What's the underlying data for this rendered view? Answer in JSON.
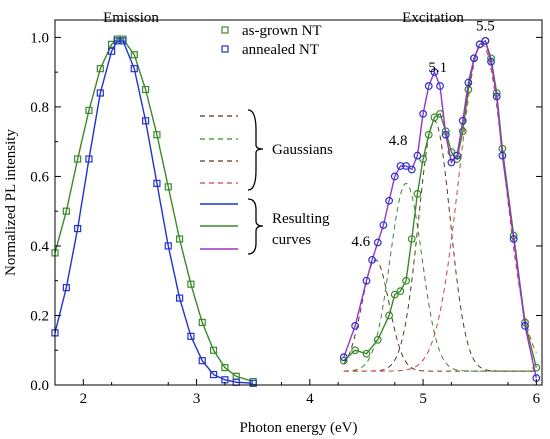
{
  "chart_data": {
    "type": "line",
    "xlabel": "Photon energy (eV)",
    "ylabel": "Normalized PL intensity",
    "xlim": [
      1.75,
      6.05
    ],
    "ylim": [
      0.0,
      1.05
    ],
    "xticks": [
      2,
      3,
      4,
      5,
      6
    ],
    "yticks": [
      0.0,
      0.2,
      0.4,
      0.6,
      0.8,
      1.0
    ],
    "xtick_labels": [
      "2",
      "3",
      "4",
      "5",
      "6"
    ],
    "ytick_labels": [
      "0.0",
      "0.2",
      "0.4",
      "0.6",
      "0.8",
      "1.0"
    ],
    "grid": false,
    "legend_position": "top-center",
    "colors": {
      "as_grown": "#3a8a2a",
      "annealed": "#2233cc",
      "resulting": "#9933cc",
      "gaussian": "#5a3a20",
      "gaussian_green": "#3a8a2a",
      "gaussian_red": "#cc4444"
    },
    "panels": {
      "emission": "Emission",
      "excitation": "Excitation"
    },
    "peak_labels": [
      {
        "text": "4.6",
        "x": 4.45,
        "y": 0.4
      },
      {
        "text": "4.8",
        "x": 4.78,
        "y": 0.69
      },
      {
        "text": "5.1",
        "x": 5.13,
        "y": 0.9
      },
      {
        "text": "5.5",
        "x": 5.55,
        "y": 1.02
      }
    ],
    "legend": {
      "series": [
        "as-grown NT",
        "annealed NT"
      ],
      "gaussians": "Gaussians",
      "resulting_line1": "Resulting",
      "resulting_line2": "curves"
    },
    "series": [
      {
        "name": "as-grown NT",
        "panel": "emission",
        "marker": "square",
        "x": [
          1.75,
          1.85,
          1.95,
          2.05,
          2.15,
          2.25,
          2.3,
          2.35,
          2.45,
          2.55,
          2.65,
          2.75,
          2.85,
          2.95,
          3.05,
          3.15,
          3.25,
          3.35,
          3.5
        ],
        "y": [
          0.38,
          0.5,
          0.65,
          0.79,
          0.91,
          0.98,
          0.995,
          0.995,
          0.95,
          0.85,
          0.72,
          0.57,
          0.42,
          0.29,
          0.18,
          0.1,
          0.05,
          0.025,
          0.01
        ]
      },
      {
        "name": "annealed NT",
        "panel": "emission",
        "marker": "square",
        "x": [
          1.75,
          1.85,
          1.95,
          2.05,
          2.15,
          2.25,
          2.3,
          2.35,
          2.45,
          2.55,
          2.65,
          2.75,
          2.85,
          2.95,
          3.05,
          3.15,
          3.25,
          3.35,
          3.5
        ],
        "y": [
          0.15,
          0.28,
          0.45,
          0.65,
          0.84,
          0.96,
          0.99,
          0.99,
          0.91,
          0.76,
          0.58,
          0.4,
          0.25,
          0.14,
          0.07,
          0.03,
          0.015,
          0.008,
          0.005
        ]
      },
      {
        "name": "as-grown NT",
        "panel": "excitation",
        "marker": "circle",
        "x": [
          4.3,
          4.4,
          4.5,
          4.6,
          4.7,
          4.75,
          4.8,
          4.85,
          4.9,
          4.95,
          5.0,
          5.05,
          5.1,
          5.15,
          5.2,
          5.25,
          5.3,
          5.35,
          5.4,
          5.45,
          5.5,
          5.55,
          5.6,
          5.65,
          5.7,
          5.8,
          5.9,
          6.0
        ],
        "y": [
          0.07,
          0.1,
          0.09,
          0.13,
          0.2,
          0.26,
          0.27,
          0.3,
          0.42,
          0.55,
          0.65,
          0.72,
          0.77,
          0.78,
          0.73,
          0.67,
          0.65,
          0.73,
          0.85,
          0.94,
          0.98,
          0.99,
          0.94,
          0.84,
          0.68,
          0.43,
          0.18,
          0.05
        ]
      },
      {
        "name": "annealed NT",
        "panel": "excitation",
        "marker": "circle",
        "x": [
          4.3,
          4.4,
          4.5,
          4.55,
          4.6,
          4.65,
          4.7,
          4.75,
          4.8,
          4.85,
          4.9,
          4.95,
          5.0,
          5.05,
          5.1,
          5.15,
          5.2,
          5.25,
          5.3,
          5.35,
          5.4,
          5.45,
          5.5,
          5.55,
          5.6,
          5.65,
          5.7,
          5.8,
          5.9,
          6.0
        ],
        "y": [
          0.08,
          0.17,
          0.3,
          0.36,
          0.41,
          0.46,
          0.53,
          0.6,
          0.63,
          0.63,
          0.62,
          0.66,
          0.78,
          0.86,
          0.9,
          0.86,
          0.72,
          0.64,
          0.66,
          0.76,
          0.87,
          0.94,
          0.98,
          0.99,
          0.93,
          0.83,
          0.66,
          0.42,
          0.17,
          0.02
        ]
      }
    ],
    "gaussians": [
      {
        "color": "gaussian",
        "center": 4.58,
        "amplitude": 0.32,
        "sigma": 0.12,
        "baseline": 0.04
      },
      {
        "color": "gaussian_green",
        "center": 4.85,
        "amplitude": 0.54,
        "sigma": 0.14,
        "baseline": 0.04
      },
      {
        "color": "gaussian",
        "center": 5.1,
        "amplitude": 0.72,
        "sigma": 0.14,
        "baseline": 0.04
      },
      {
        "color": "gaussian_red",
        "center": 5.52,
        "amplitude": 0.94,
        "sigma": 0.2,
        "baseline": 0.04
      }
    ]
  }
}
